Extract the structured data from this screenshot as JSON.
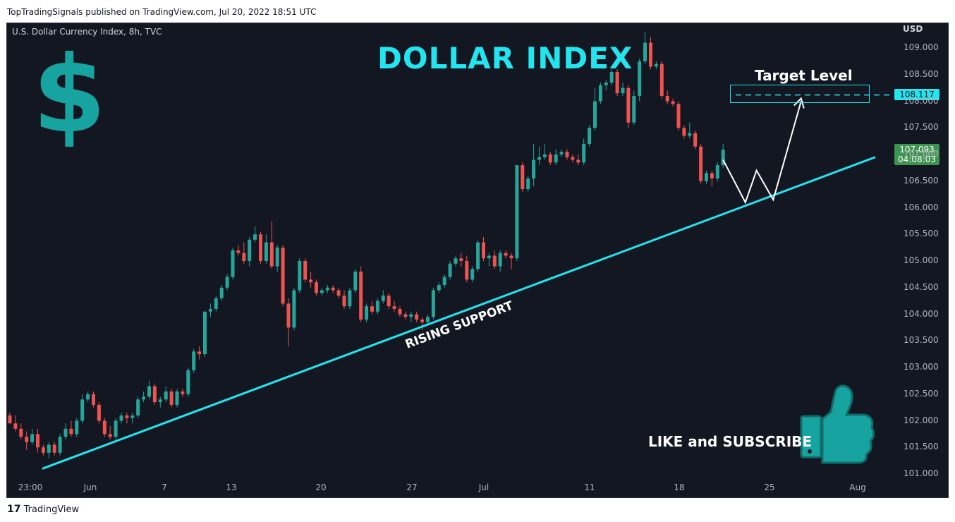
{
  "header": {
    "published": "TopTradingSignals published on TradingView.com, Jul 20, 2022 18:51 UTC"
  },
  "chart": {
    "symbol": "U.S. Dollar Currency Index, 8h, TVC",
    "currency": "USD",
    "title": "DOLLAR INDEX",
    "dollar_symbol": "$",
    "target_label": "Target Level",
    "target_price": "108.117",
    "last_price": "107.093",
    "countdown": "04:08:03",
    "support_label": "RISING SUPPORT",
    "cta": "LIKE and SUBSCRIBE",
    "footer_logo": "TradingView",
    "colors": {
      "background": "#131722",
      "up": "#26a69a",
      "down": "#ef5350",
      "accent": "#22e5ef",
      "logo": "#17a4a0"
    }
  },
  "chart_data": {
    "type": "candlestick",
    "title": "DOLLAR INDEX",
    "ylabel": "USD",
    "ylim": [
      100.8,
      109.3
    ],
    "yticks": [
      "109.000",
      "108.500",
      "108.000",
      "107.500",
      "107.000",
      "106.500",
      "106.000",
      "105.500",
      "105.000",
      "104.500",
      "104.000",
      "103.500",
      "103.000",
      "102.500",
      "102.000",
      "101.500",
      "101.000"
    ],
    "xticks": [
      "23:00",
      "Jun",
      "7",
      "13",
      "20",
      "27",
      "Jul",
      "11",
      "18",
      "25",
      "Aug"
    ],
    "candles": [
      [
        102.1,
        102.15,
        101.95,
        101.95
      ],
      [
        101.95,
        102.1,
        101.8,
        101.85
      ],
      [
        101.85,
        101.95,
        101.65,
        101.7
      ],
      [
        101.7,
        101.8,
        101.45,
        101.6
      ],
      [
        101.6,
        101.85,
        101.55,
        101.75
      ],
      [
        101.75,
        101.85,
        101.4,
        101.5
      ],
      [
        101.5,
        101.55,
        101.35,
        101.4
      ],
      [
        101.4,
        101.6,
        101.3,
        101.55
      ],
      [
        101.55,
        101.6,
        101.35,
        101.4
      ],
      [
        101.4,
        101.75,
        101.35,
        101.7
      ],
      [
        101.7,
        101.95,
        101.65,
        101.85
      ],
      [
        101.85,
        102.0,
        101.7,
        101.75
      ],
      [
        101.75,
        102.05,
        101.7,
        102.0
      ],
      [
        102.0,
        102.5,
        101.95,
        102.4
      ],
      [
        102.4,
        102.55,
        102.35,
        102.5
      ],
      [
        102.5,
        102.55,
        102.25,
        102.3
      ],
      [
        102.3,
        102.35,
        101.95,
        102.0
      ],
      [
        102.0,
        102.05,
        101.7,
        101.75
      ],
      [
        101.75,
        101.9,
        101.65,
        101.7
      ],
      [
        101.7,
        102.05,
        101.65,
        102.0
      ],
      [
        102.0,
        102.15,
        101.95,
        102.1
      ],
      [
        102.1,
        102.15,
        101.95,
        102.05
      ],
      [
        102.05,
        102.15,
        101.95,
        102.1
      ],
      [
        102.1,
        102.45,
        102.05,
        102.4
      ],
      [
        102.4,
        102.55,
        102.35,
        102.45
      ],
      [
        102.45,
        102.75,
        102.4,
        102.65
      ],
      [
        102.65,
        102.7,
        102.3,
        102.35
      ],
      [
        102.35,
        102.45,
        102.25,
        102.4
      ],
      [
        102.4,
        102.65,
        102.35,
        102.55
      ],
      [
        102.55,
        102.6,
        102.25,
        102.3
      ],
      [
        102.3,
        102.6,
        102.25,
        102.55
      ],
      [
        102.55,
        102.6,
        102.45,
        102.5
      ],
      [
        102.5,
        103.0,
        102.45,
        102.95
      ],
      [
        102.95,
        103.35,
        102.9,
        103.3
      ],
      [
        103.3,
        103.4,
        103.15,
        103.25
      ],
      [
        103.25,
        104.05,
        103.2,
        104.05
      ],
      [
        104.05,
        104.2,
        103.95,
        104.1
      ],
      [
        104.1,
        104.35,
        104.05,
        104.3
      ],
      [
        104.3,
        104.55,
        104.25,
        104.5
      ],
      [
        104.5,
        104.75,
        104.45,
        104.7
      ],
      [
        104.7,
        105.25,
        104.65,
        105.2
      ],
      [
        105.2,
        105.3,
        105.1,
        105.15
      ],
      [
        105.15,
        105.35,
        104.95,
        105.0
      ],
      [
        105.0,
        105.45,
        104.9,
        105.4
      ],
      [
        105.4,
        105.65,
        105.35,
        105.5
      ],
      [
        105.5,
        105.55,
        104.95,
        105.0
      ],
      [
        105.0,
        105.5,
        104.95,
        105.35
      ],
      [
        105.35,
        105.75,
        104.85,
        104.9
      ],
      [
        104.9,
        105.3,
        104.8,
        105.25
      ],
      [
        105.25,
        105.3,
        104.15,
        104.2
      ],
      [
        104.2,
        104.3,
        103.4,
        103.75
      ],
      [
        103.75,
        104.5,
        103.7,
        104.45
      ],
      [
        104.45,
        105.05,
        104.4,
        105.0
      ],
      [
        105.0,
        105.05,
        104.6,
        104.65
      ],
      [
        104.65,
        104.8,
        104.5,
        104.6
      ],
      [
        104.6,
        104.65,
        104.35,
        104.4
      ],
      [
        104.4,
        104.5,
        104.35,
        104.45
      ],
      [
        104.45,
        104.55,
        104.4,
        104.5
      ],
      [
        104.5,
        104.55,
        104.4,
        104.45
      ],
      [
        104.45,
        104.5,
        104.3,
        104.35
      ],
      [
        104.35,
        104.45,
        104.1,
        104.15
      ],
      [
        104.15,
        104.5,
        104.1,
        104.45
      ],
      [
        104.45,
        104.85,
        104.4,
        104.8
      ],
      [
        104.8,
        104.9,
        103.85,
        103.9
      ],
      [
        103.9,
        104.2,
        103.85,
        104.15
      ],
      [
        104.15,
        104.25,
        104.0,
        104.05
      ],
      [
        104.05,
        104.3,
        104.0,
        104.25
      ],
      [
        104.25,
        104.45,
        104.2,
        104.35
      ],
      [
        104.35,
        104.4,
        104.1,
        104.15
      ],
      [
        104.15,
        104.25,
        104.05,
        104.1
      ],
      [
        104.1,
        104.15,
        103.95,
        104.0
      ],
      [
        104.0,
        104.05,
        103.9,
        103.95
      ],
      [
        103.95,
        104.05,
        103.85,
        104.0
      ],
      [
        104.0,
        104.05,
        103.85,
        103.9
      ],
      [
        103.9,
        103.95,
        103.7,
        103.85
      ],
      [
        103.85,
        104.0,
        103.8,
        103.95
      ],
      [
        103.95,
        104.5,
        103.9,
        104.45
      ],
      [
        104.45,
        104.6,
        104.4,
        104.55
      ],
      [
        104.55,
        104.75,
        104.5,
        104.7
      ],
      [
        104.7,
        105.0,
        104.65,
        104.95
      ],
      [
        104.95,
        105.1,
        104.9,
        105.05
      ],
      [
        105.05,
        105.15,
        104.9,
        105.0
      ],
      [
        105.0,
        105.1,
        104.6,
        104.65
      ],
      [
        104.65,
        104.9,
        104.6,
        104.85
      ],
      [
        104.85,
        105.4,
        104.8,
        105.35
      ],
      [
        105.35,
        105.45,
        105.0,
        105.05
      ],
      [
        105.05,
        105.15,
        104.9,
        105.1
      ],
      [
        105.1,
        105.2,
        104.85,
        104.9
      ],
      [
        104.9,
        105.2,
        104.8,
        105.15
      ],
      [
        105.15,
        105.2,
        105.05,
        105.1
      ],
      [
        105.1,
        105.15,
        104.85,
        105.05
      ],
      [
        105.05,
        106.8,
        105.0,
        106.8
      ],
      [
        106.8,
        106.85,
        106.3,
        106.35
      ],
      [
        106.35,
        106.6,
        106.3,
        106.55
      ],
      [
        106.55,
        107.2,
        106.4,
        106.9
      ],
      [
        106.9,
        107.15,
        106.8,
        106.95
      ],
      [
        106.95,
        107.2,
        106.9,
        107.0
      ],
      [
        107.0,
        107.05,
        106.8,
        106.85
      ],
      [
        106.85,
        107.1,
        106.8,
        107.0
      ],
      [
        107.0,
        107.1,
        106.95,
        107.05
      ],
      [
        107.05,
        107.1,
        106.9,
        106.95
      ],
      [
        106.95,
        107.0,
        106.85,
        106.9
      ],
      [
        106.9,
        107.0,
        106.8,
        106.85
      ],
      [
        106.85,
        107.3,
        106.8,
        107.2
      ],
      [
        107.2,
        107.55,
        107.15,
        107.5
      ],
      [
        107.5,
        108.25,
        107.45,
        108.0
      ],
      [
        108.0,
        108.35,
        107.95,
        108.3
      ],
      [
        108.3,
        108.4,
        108.2,
        108.35
      ],
      [
        108.35,
        108.6,
        108.3,
        108.55
      ],
      [
        108.55,
        108.6,
        108.1,
        108.15
      ],
      [
        108.15,
        108.35,
        108.1,
        108.25
      ],
      [
        108.25,
        108.3,
        107.5,
        107.6
      ],
      [
        107.6,
        108.2,
        107.55,
        108.1
      ],
      [
        108.1,
        108.8,
        108.0,
        108.75
      ],
      [
        108.75,
        109.3,
        108.7,
        109.1
      ],
      [
        109.1,
        109.2,
        108.6,
        108.65
      ],
      [
        108.65,
        108.75,
        108.6,
        108.7
      ],
      [
        108.7,
        108.75,
        108.05,
        108.1
      ],
      [
        108.1,
        108.2,
        107.95,
        108.0
      ],
      [
        108.0,
        108.05,
        107.9,
        107.95
      ],
      [
        107.95,
        108.0,
        107.45,
        107.5
      ],
      [
        107.5,
        107.55,
        107.3,
        107.35
      ],
      [
        107.35,
        107.6,
        107.3,
        107.4
      ],
      [
        107.4,
        107.45,
        107.1,
        107.15
      ],
      [
        107.15,
        107.2,
        106.45,
        106.5
      ],
      [
        106.5,
        106.7,
        106.45,
        106.65
      ],
      [
        106.65,
        106.7,
        106.4,
        106.55
      ],
      [
        106.55,
        106.85,
        106.5,
        106.8
      ],
      [
        106.8,
        107.2,
        106.75,
        107.09
      ]
    ],
    "support_line": [
      [
        0,
        101.1
      ],
      [
        163,
        106.95
      ]
    ],
    "target_level": 108.117,
    "projection_path": [
      [
        128,
        106.9
      ],
      [
        132,
        106.1
      ],
      [
        134,
        106.7
      ],
      [
        137,
        106.15
      ],
      [
        142,
        108.0
      ]
    ]
  }
}
